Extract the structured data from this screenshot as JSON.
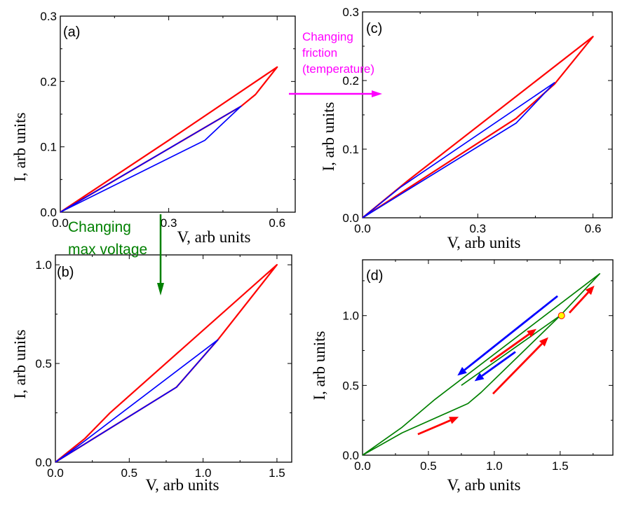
{
  "chart_data": [
    {
      "panel": "(a)",
      "type": "line",
      "xlabel": "V, arb units",
      "ylabel": "I, arb units",
      "xlim": [
        0,
        0.65
      ],
      "ylim": [
        0,
        0.3
      ],
      "xticks": [
        0,
        0.3,
        0.6
      ],
      "xtick_labels": [
        "0.0",
        "0.3",
        "0.6"
      ],
      "yticks": [
        0,
        0.1,
        0.2,
        0.3
      ],
      "ytick_labels": [
        "0.0",
        "0.1",
        "0.2",
        "0.3"
      ],
      "grid": false,
      "series": [
        {
          "color": "#ff0000",
          "points": [
            [
              0,
              0
            ],
            [
              0.5,
              0.162
            ],
            [
              0.54,
              0.18
            ],
            [
              0.6,
              0.222
            ],
            [
              0.3,
              0.11
            ],
            [
              0,
              0
            ]
          ]
        },
        {
          "color": "#0000ff",
          "points": [
            [
              0,
              0
            ],
            [
              0.4,
              0.11
            ],
            [
              0.5,
              0.162
            ],
            [
              0,
              0
            ]
          ]
        }
      ]
    },
    {
      "panel": "(b)",
      "type": "line",
      "xlabel": "V, arb units",
      "ylabel": "I, arb units",
      "xlim": [
        0,
        1.6
      ],
      "ylim": [
        0,
        1.05
      ],
      "xticks": [
        0,
        0.5,
        1.0,
        1.5
      ],
      "xtick_labels": [
        "0.0",
        "0.5",
        "1.0",
        "1.5"
      ],
      "yticks": [
        0,
        0.5,
        1.0
      ],
      "ytick_labels": [
        "0.0",
        "0.5",
        "1.0"
      ],
      "grid": false,
      "series": [
        {
          "color": "#ff0000",
          "points": [
            [
              0,
              0
            ],
            [
              0.82,
              0.38
            ],
            [
              1.1,
              0.62
            ],
            [
              1.5,
              1.0
            ],
            [
              0.37,
              0.25
            ],
            [
              0.2,
              0.12
            ],
            [
              0,
              0
            ]
          ]
        },
        {
          "color": "#0000ff",
          "points": [
            [
              0,
              0
            ],
            [
              0.82,
              0.38
            ],
            [
              1.1,
              0.62
            ],
            [
              0.15,
              0.08
            ],
            [
              0,
              0
            ]
          ]
        }
      ]
    },
    {
      "panel": "(c)",
      "type": "line",
      "xlabel": "V, arb units",
      "ylabel": "I, arb units",
      "xlim": [
        0,
        0.65
      ],
      "ylim": [
        0,
        0.3
      ],
      "xticks": [
        0,
        0.3,
        0.6
      ],
      "xtick_labels": [
        "0.0",
        "0.3",
        "0.6"
      ],
      "yticks": [
        0,
        0.1,
        0.2,
        0.3
      ],
      "ytick_labels": [
        "0.0",
        "0.1",
        "0.2",
        "0.3"
      ],
      "grid": false,
      "series": [
        {
          "color": "#ff0000",
          "points": [
            [
              0,
              0
            ],
            [
              0.4,
              0.145
            ],
            [
              0.5,
              0.195
            ],
            [
              0.6,
              0.264
            ],
            [
              0.12,
              0.055
            ],
            [
              0,
              0
            ]
          ]
        },
        {
          "color": "#0000ff",
          "points": [
            [
              0,
              0
            ],
            [
              0.4,
              0.138
            ],
            [
              0.5,
              0.197
            ],
            [
              0.1,
              0.045
            ],
            [
              0,
              0
            ]
          ]
        }
      ]
    },
    {
      "panel": "(d)",
      "type": "line",
      "xlabel": "V, arb units",
      "ylabel": "I, arb units",
      "xlim": [
        0,
        1.9
      ],
      "ylim": [
        0,
        1.4
      ],
      "xticks": [
        0,
        0.5,
        1.0,
        1.5
      ],
      "xtick_labels": [
        "0.0",
        "0.5",
        "1.0",
        "1.5"
      ],
      "yticks": [
        0,
        0.5,
        1.0
      ],
      "ytick_labels": [
        "0.0",
        "0.5",
        "1.0"
      ],
      "grid": false,
      "series": [
        {
          "color": "#008000",
          "points": [
            [
              0,
              0
            ],
            [
              0.3,
              0.16
            ],
            [
              0.8,
              0.37
            ],
            [
              0.9,
              0.45
            ],
            [
              1.5,
              1.0
            ],
            [
              1.8,
              1.3
            ],
            [
              0.55,
              0.4
            ],
            [
              0.3,
              0.2
            ],
            [
              0,
              0
            ]
          ]
        },
        {
          "color": "#008000",
          "points": [
            [
              0.75,
              0.5
            ],
            [
              1.5,
              1.0
            ]
          ]
        }
      ],
      "arrows": [
        {
          "color": "#0000ff",
          "from": [
            1.48,
            1.14
          ],
          "to": [
            0.72,
            0.57
          ]
        },
        {
          "color": "#0000ff",
          "from": [
            1.16,
            0.74
          ],
          "to": [
            0.85,
            0.53
          ]
        },
        {
          "color": "#ff0000",
          "from": [
            0.97,
            0.67
          ],
          "to": [
            1.32,
            0.905
          ]
        },
        {
          "color": "#ff0000",
          "from": [
            0.99,
            0.44
          ],
          "to": [
            1.41,
            0.845
          ]
        },
        {
          "color": "#ff0000",
          "from": [
            1.57,
            1.02
          ],
          "to": [
            1.76,
            1.215
          ]
        },
        {
          "color": "#ff0000",
          "from": [
            0.42,
            0.15
          ],
          "to": [
            0.73,
            0.275
          ]
        }
      ],
      "marker": {
        "x": 1.51,
        "y": 1.0,
        "fill": "#ffff00",
        "stroke": "#ff0000"
      }
    }
  ],
  "annotations": {
    "friction": {
      "lines": [
        "Changing",
        "friction",
        "(temperature)"
      ],
      "color": "#ff00ff"
    },
    "voltage": {
      "lines": [
        "Changing",
        "max voltage"
      ],
      "color": "#008000"
    }
  }
}
